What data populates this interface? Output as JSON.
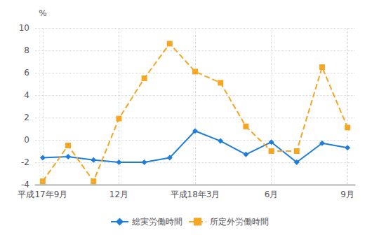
{
  "chart_data": {
    "type": "line",
    "ylabel": "%",
    "x": [
      0,
      1,
      2,
      3,
      4,
      5,
      6,
      7,
      8,
      9,
      10,
      11,
      12
    ],
    "series": [
      {
        "name": "総実労働時間",
        "color": "#1e7dd9",
        "marker": "diamond",
        "line_style": "solid",
        "values": [
          -1.6,
          -1.5,
          -1.8,
          -2.0,
          -2.0,
          -1.6,
          0.8,
          -0.1,
          -1.3,
          -0.2,
          -2.0,
          -0.3,
          -0.7
        ]
      },
      {
        "name": "所定外労働時間",
        "color": "#f5a623",
        "marker": "square",
        "line_style": "dashed",
        "values": [
          -3.7,
          -0.5,
          -3.7,
          1.9,
          5.5,
          8.6,
          6.1,
          5.1,
          1.2,
          -1.0,
          -1.0,
          6.5,
          1.1
        ]
      }
    ],
    "xlim": [
      -0.3,
      12.3
    ],
    "xticks": [
      {
        "value": 0,
        "label": "平成17年9月"
      },
      {
        "value": 3,
        "label": "12月"
      },
      {
        "value": 6,
        "label": "平成18年3月"
      },
      {
        "value": 9,
        "label": "6月"
      },
      {
        "value": 12,
        "label": "9月"
      }
    ],
    "ylim": [
      -4,
      10
    ],
    "yticks": [
      -4,
      -2,
      0,
      2,
      4,
      6,
      8,
      10
    ],
    "grid": true,
    "legend": "bottom"
  }
}
